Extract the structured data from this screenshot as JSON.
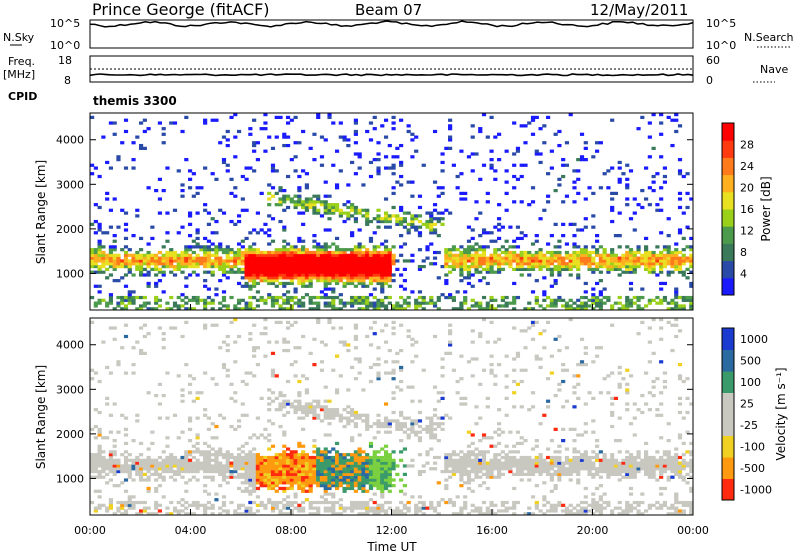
{
  "header": {
    "station": "Prince George (fitACF)",
    "beam": "Beam 07",
    "date": "12/May/2011"
  },
  "strips": {
    "nsky_label": "N.Sky",
    "nsky_ticks": [
      "10^5",
      "10^0"
    ],
    "nsky_right_ticks": [
      "10^5",
      "10^0"
    ],
    "nsearch_label": "N.Search",
    "freq_label": "Freq.",
    "freq_unit": "[MHz]",
    "freq_ticks": [
      "18",
      "8"
    ],
    "nave_label": "Nave",
    "nave_ticks": [
      "60",
      "0"
    ],
    "cpid_label": "CPID",
    "cpid_value": "themis 3300"
  },
  "colors": {
    "power": [
      "#1a1aff",
      "#2a4aa8",
      "#3a7a5a",
      "#4c9a4c",
      "#9ad01a",
      "#e8e020",
      "#ffb020",
      "#ff7a1a",
      "#ff3a10",
      "#ff0000"
    ],
    "velocity": {
      "pos_high": "#1a3ad0",
      "pos_mid": "#2a6aa0",
      "pos_low": "#3a9a6a",
      "ground": "#c8c8c0",
      "neg_low": "#f0d020",
      "neg_mid": "#ff9a10",
      "neg_high": "#ff2a10"
    }
  },
  "chart_data": [
    {
      "type": "heatmap",
      "name": "power",
      "ylabel": "Slant Range [km]",
      "ylim": [
        180,
        4600
      ],
      "yticks": [
        "1000",
        "2000",
        "3000",
        "4000"
      ],
      "colorbar": {
        "label": "Power [dB]",
        "ticks": [
          "4",
          "8",
          "12",
          "16",
          "20",
          "24",
          "28"
        ]
      }
    },
    {
      "type": "heatmap",
      "name": "velocity",
      "ylabel": "Slant Range [km]",
      "xlabel": "Time UT",
      "ylim": [
        180,
        4600
      ],
      "yticks": [
        "1000",
        "2000",
        "3000",
        "4000"
      ],
      "xticks": [
        "00:00",
        "04:00",
        "08:00",
        "12:00",
        "16:00",
        "20:00",
        "00:00"
      ],
      "colorbar": {
        "label": "Velocity [m s⁻¹]",
        "ticks": [
          "1000",
          "500",
          "100",
          "25",
          "-25",
          "-100",
          "-500",
          "-1000"
        ]
      }
    }
  ]
}
